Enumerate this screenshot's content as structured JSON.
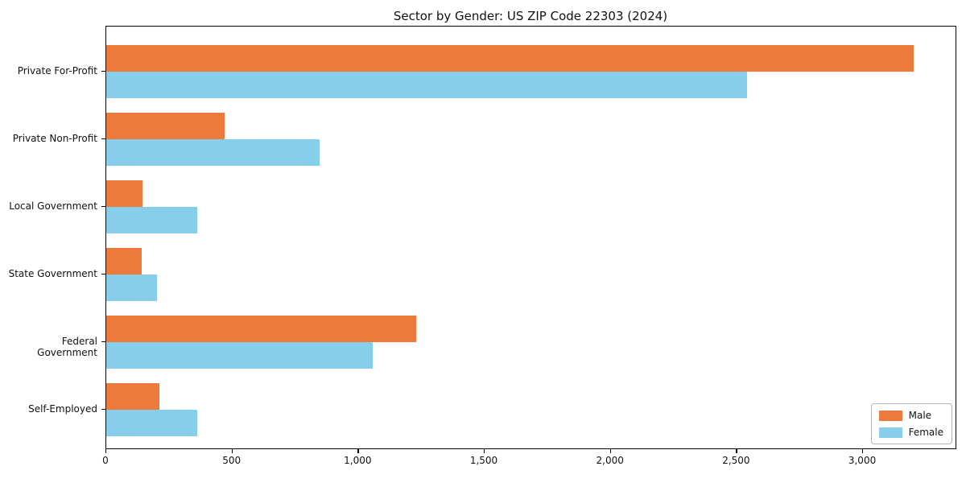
{
  "title": "Sector by Gender: US ZIP Code 22303 (2024)",
  "chart_data": {
    "type": "bar",
    "orientation": "horizontal",
    "title": "Sector by Gender: US ZIP Code 22303 (2024)",
    "xlabel": "",
    "ylabel": "",
    "categories": [
      "Private For-Profit",
      "Private Non-Profit",
      "Local Government",
      "State Government",
      "Federal Government",
      "Self-Employed"
    ],
    "series": [
      {
        "name": "Male",
        "color": "#EC7A3C",
        "values": [
          3200,
          470,
          145,
          140,
          1230,
          210
        ]
      },
      {
        "name": "Female",
        "color": "#87CEEB",
        "values": [
          2540,
          845,
          360,
          200,
          1055,
          360
        ]
      }
    ],
    "xlim": [
      0,
      3370
    ],
    "xticks": [
      0,
      500,
      1000,
      1500,
      2000,
      2500,
      3000
    ],
    "xtick_labels": [
      "0",
      "500",
      "1,000",
      "1,500",
      "2,000",
      "2,500",
      "3,000"
    ],
    "grid": false,
    "legend_position": "lower right"
  },
  "legend": {
    "items": [
      {
        "label": "Male"
      },
      {
        "label": "Female"
      }
    ]
  }
}
